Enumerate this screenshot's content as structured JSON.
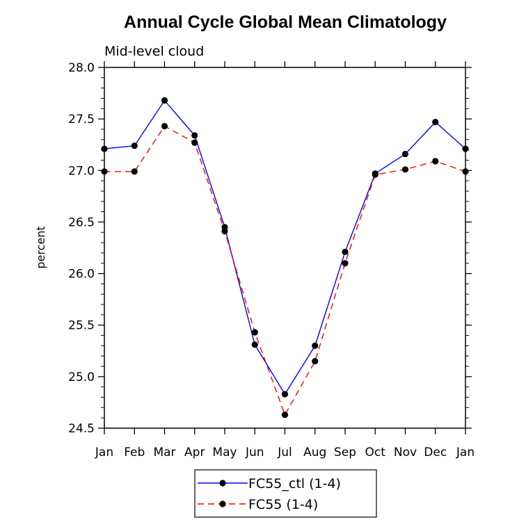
{
  "chart_data": {
    "type": "line",
    "title": "Annual Cycle Global Mean Climatology",
    "subtitle": "Mid-level cloud",
    "xlabel": "",
    "ylabel": "percent",
    "categories": [
      "Jan",
      "Feb",
      "Mar",
      "Apr",
      "May",
      "Jun",
      "Jul",
      "Aug",
      "Sep",
      "Oct",
      "Nov",
      "Dec",
      "Jan"
    ],
    "ylim": [
      24.5,
      28.0
    ],
    "yticks": [
      "24.5",
      "25.0",
      "25.5",
      "26.0",
      "26.5",
      "27.0",
      "27.5",
      "28.0"
    ],
    "grid": false,
    "legend_position": "bottom",
    "series": [
      {
        "name": "FC55_ctl (1-4)",
        "color": "#0000ff",
        "dash": "solid",
        "marker": "filled-circle",
        "values": [
          27.21,
          27.24,
          27.68,
          27.34,
          26.45,
          25.31,
          24.83,
          25.3,
          26.21,
          26.97,
          27.16,
          27.47,
          27.21
        ]
      },
      {
        "name": "FC55 (1-4)",
        "color": "#ff0000",
        "dash": "dashed",
        "marker": "filled-circle",
        "values": [
          26.99,
          26.99,
          27.43,
          27.27,
          26.41,
          25.43,
          24.63,
          25.15,
          26.1,
          26.96,
          27.01,
          27.09,
          26.99
        ]
      }
    ]
  }
}
